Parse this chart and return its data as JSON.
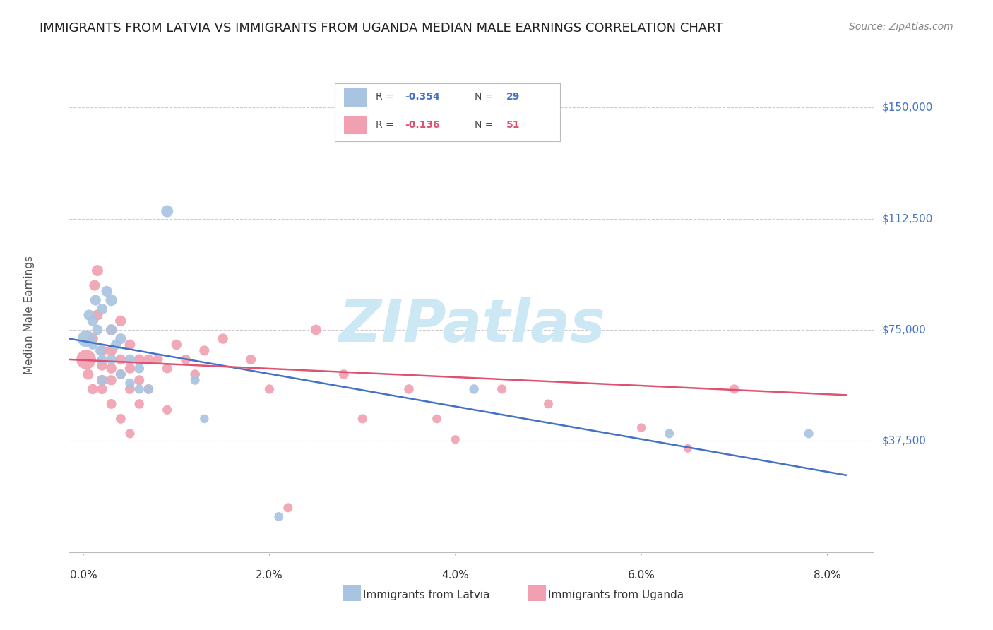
{
  "title": "IMMIGRANTS FROM LATVIA VS IMMIGRANTS FROM UGANDA MEDIAN MALE EARNINGS CORRELATION CHART",
  "source": "Source: ZipAtlas.com",
  "ylabel": "Median Male Earnings",
  "ytick_labels": [
    "$150,000",
    "$112,500",
    "$75,000",
    "$37,500"
  ],
  "ytick_values": [
    150000,
    112500,
    75000,
    37500
  ],
  "ylim": [
    -5000,
    165000
  ],
  "xlim": [
    -0.0015,
    0.085
  ],
  "background_color": "#ffffff",
  "grid_color": "#cccccc",
  "latvia_color": "#a8c4e0",
  "uganda_color": "#f0a0b0",
  "latvia_line_color": "#4472c4",
  "uganda_line_color": "#e05070",
  "latvia_scatter_x": [
    0.0003,
    0.0006,
    0.001,
    0.001,
    0.0013,
    0.0015,
    0.0018,
    0.002,
    0.002,
    0.0025,
    0.003,
    0.003,
    0.003,
    0.0035,
    0.004,
    0.004,
    0.005,
    0.005,
    0.006,
    0.006,
    0.007,
    0.009,
    0.012,
    0.013,
    0.021,
    0.042,
    0.063,
    0.078,
    0.002
  ],
  "latvia_scatter_y": [
    72000,
    80000,
    78000,
    70000,
    85000,
    75000,
    68000,
    82000,
    65000,
    88000,
    85000,
    75000,
    65000,
    70000,
    72000,
    60000,
    65000,
    57000,
    62000,
    55000,
    55000,
    115000,
    58000,
    45000,
    12000,
    55000,
    40000,
    40000,
    58000
  ],
  "latvia_scatter_size": [
    300,
    120,
    120,
    100,
    120,
    110,
    100,
    120,
    100,
    120,
    140,
    120,
    110,
    110,
    120,
    100,
    110,
    95,
    100,
    90,
    90,
    150,
    90,
    80,
    85,
    95,
    90,
    90,
    95
  ],
  "uganda_scatter_x": [
    0.0003,
    0.0005,
    0.001,
    0.001,
    0.0012,
    0.0015,
    0.0015,
    0.002,
    0.002,
    0.002,
    0.002,
    0.003,
    0.003,
    0.003,
    0.003,
    0.003,
    0.004,
    0.004,
    0.004,
    0.004,
    0.005,
    0.005,
    0.005,
    0.005,
    0.006,
    0.006,
    0.006,
    0.007,
    0.007,
    0.008,
    0.009,
    0.009,
    0.01,
    0.011,
    0.012,
    0.013,
    0.015,
    0.018,
    0.02,
    0.022,
    0.025,
    0.028,
    0.03,
    0.035,
    0.038,
    0.04,
    0.045,
    0.05,
    0.06,
    0.065,
    0.07
  ],
  "uganda_scatter_y": [
    65000,
    60000,
    72000,
    55000,
    90000,
    95000,
    80000,
    68000,
    63000,
    58000,
    55000,
    75000,
    68000,
    62000,
    58000,
    50000,
    78000,
    65000,
    60000,
    45000,
    70000,
    62000,
    55000,
    40000,
    65000,
    58000,
    50000,
    65000,
    55000,
    65000,
    62000,
    48000,
    70000,
    65000,
    60000,
    68000,
    72000,
    65000,
    55000,
    15000,
    75000,
    60000,
    45000,
    55000,
    45000,
    38000,
    55000,
    50000,
    42000,
    35000,
    55000
  ],
  "uganda_scatter_size": [
    400,
    120,
    120,
    110,
    120,
    130,
    120,
    120,
    110,
    120,
    105,
    125,
    120,
    110,
    105,
    100,
    125,
    115,
    105,
    100,
    115,
    110,
    100,
    90,
    115,
    105,
    95,
    110,
    100,
    105,
    100,
    90,
    110,
    100,
    97,
    103,
    108,
    103,
    92,
    88,
    113,
    100,
    88,
    95,
    83,
    78,
    90,
    87,
    80,
    75,
    92
  ],
  "latvia_trend_x": [
    -0.0015,
    0.082
  ],
  "latvia_trend_y": [
    72000,
    26000
  ],
  "uganda_trend_x": [
    -0.0015,
    0.082
  ],
  "uganda_trend_y": [
    65000,
    53000
  ],
  "watermark": "ZIPatlas",
  "watermark_color": "#cce8f4",
  "xtick_positions": [
    0.0,
    0.02,
    0.04,
    0.06,
    0.08
  ],
  "xtick_labels": [
    "0.0%",
    "2.0%",
    "4.0%",
    "6.0%",
    "8.0%"
  ],
  "ytick_color": "#4472c4",
  "title_fontsize": 13,
  "axis_label_fontsize": 11,
  "tick_fontsize": 11,
  "legend_fontsize": 11,
  "source_fontsize": 10
}
